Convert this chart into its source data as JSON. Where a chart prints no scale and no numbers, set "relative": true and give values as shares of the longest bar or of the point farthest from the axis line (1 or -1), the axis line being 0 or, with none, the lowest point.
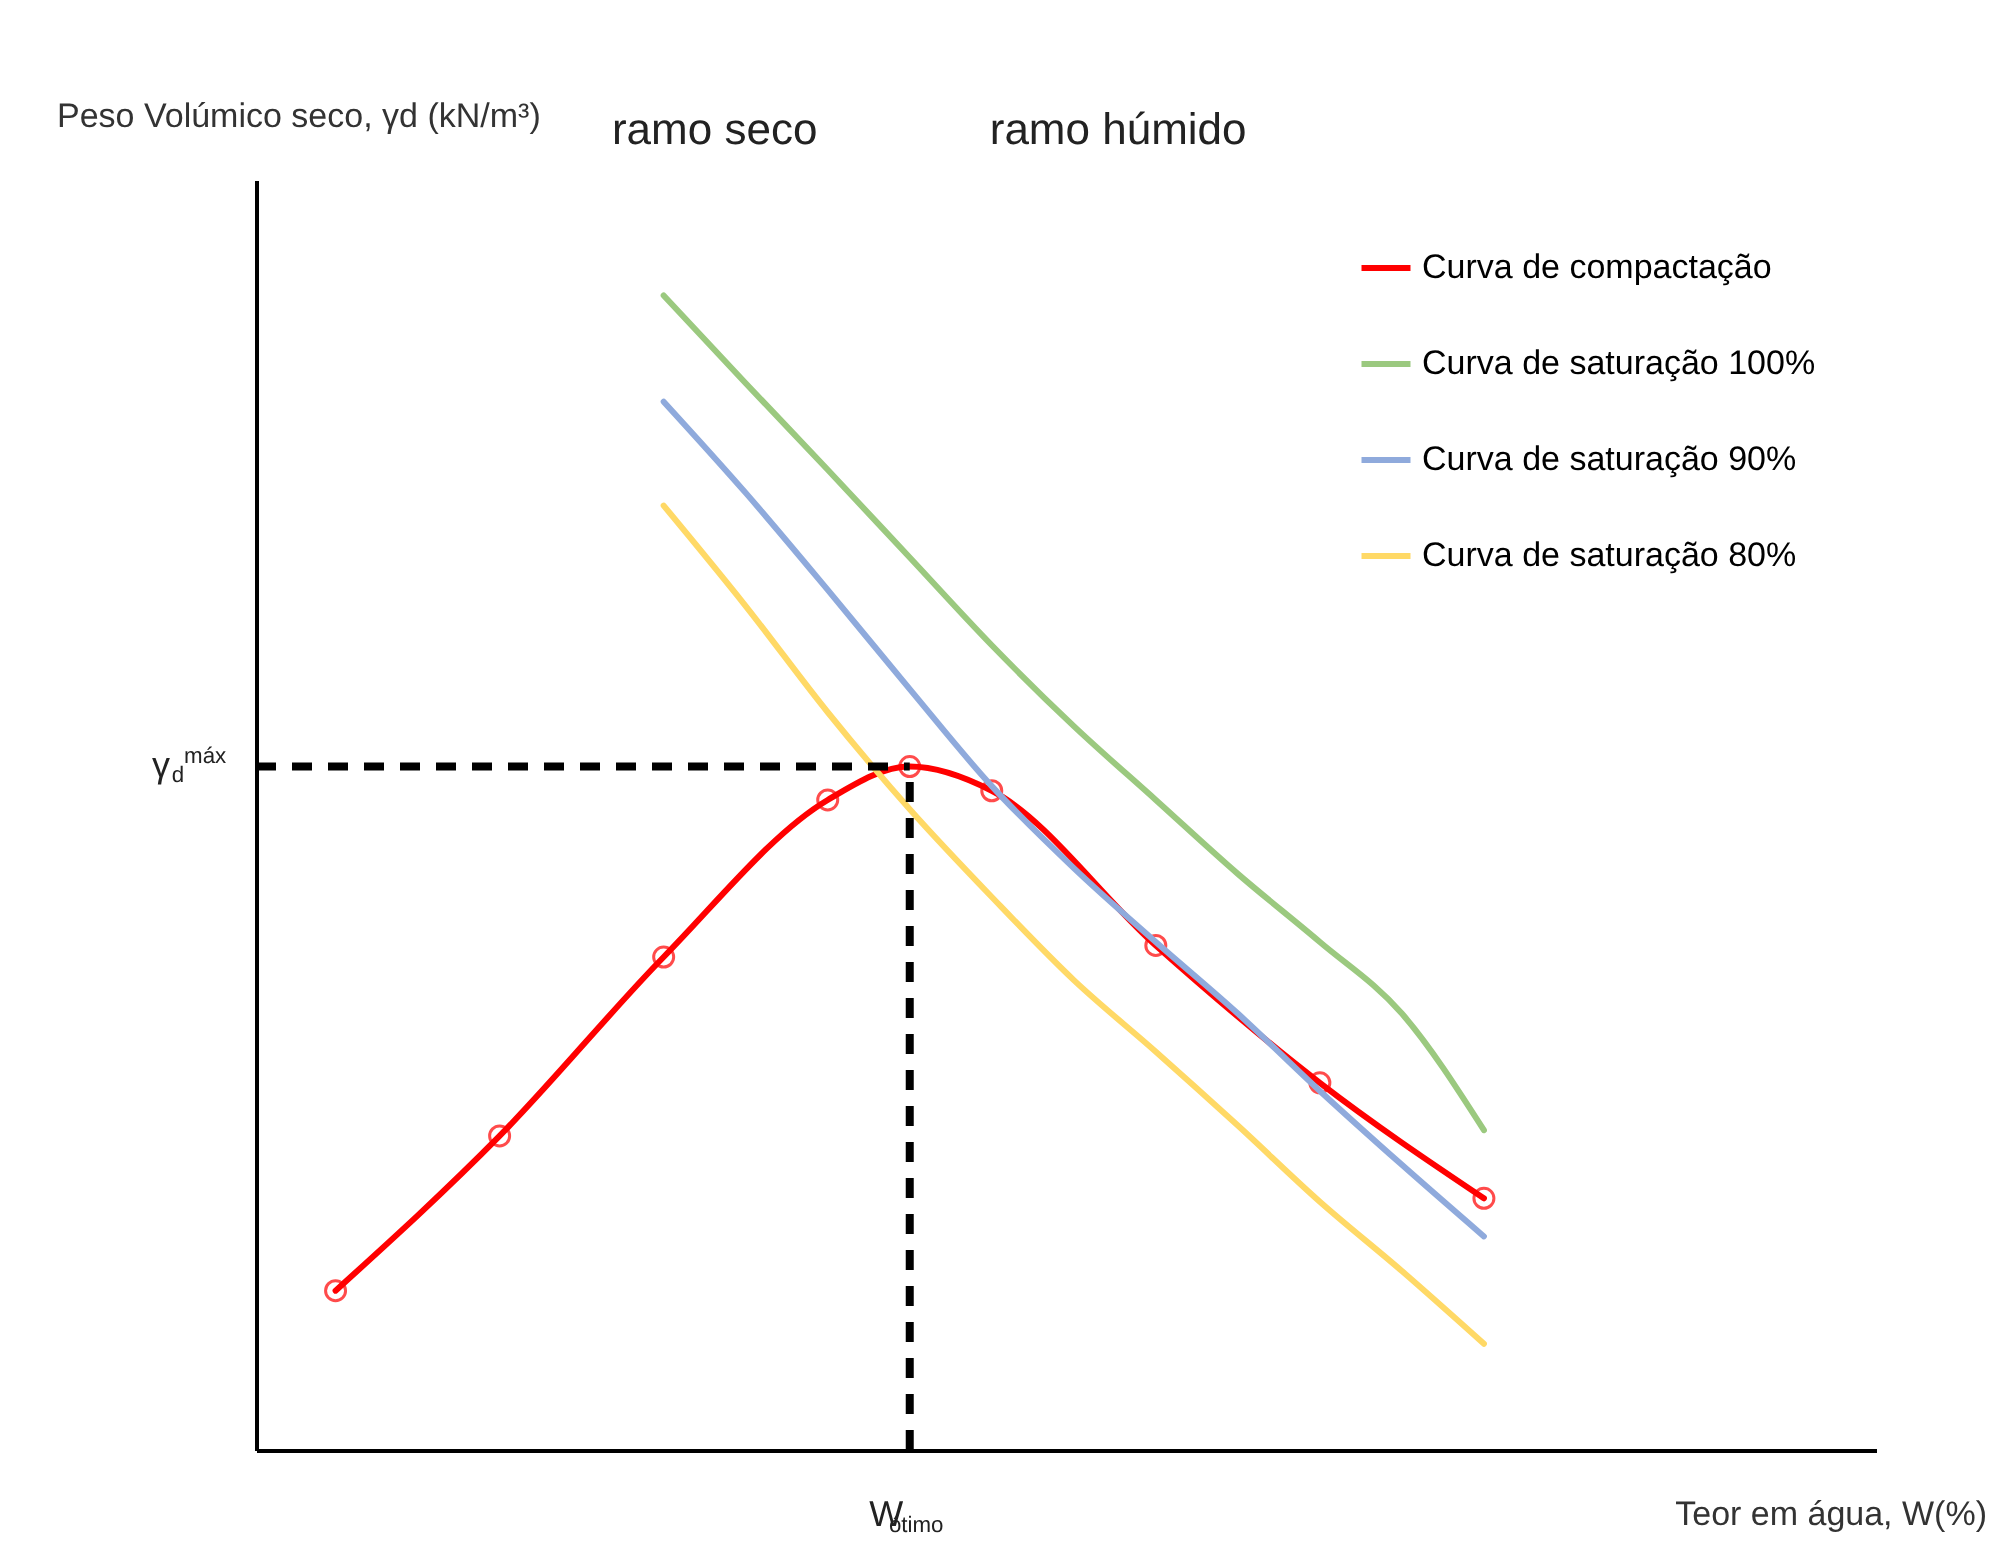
{
  "chart_data": {
    "type": "line",
    "relative": true,
    "xlabel": "Teor em água, W(%)",
    "ylabel": "Peso Volúmico seco, γd (kN/m³)",
    "categories": [
      null,
      null,
      null,
      null,
      null,
      null,
      null,
      null,
      null,
      null,
      null,
      null,
      null,
      null,
      null
    ],
    "series": [
      {
        "name": "Curva de compactação",
        "color": "#ff0000",
        "marker": "circle",
        "values": [
          0.138,
          null,
          0.272,
          null,
          0.427,
          null,
          0.563,
          0.592,
          0.571,
          null,
          0.437,
          null,
          0.318,
          null,
          0.218
        ]
      },
      {
        "name": "Curva de saturação 100%",
        "color": "#9bc97f",
        "values": [
          null,
          null,
          null,
          null,
          1.0,
          0.924,
          0.849,
          0.773,
          0.697,
          0.627,
          0.563,
          0.499,
          0.44,
          0.378,
          0.277
        ]
      },
      {
        "name": "Curva de saturação 90%",
        "color": "#8faadc",
        "values": [
          null,
          null,
          null,
          null,
          0.908,
          0.829,
          0.745,
          0.659,
          0.575,
          0.504,
          0.44,
          0.378,
          0.311,
          0.247,
          0.185
        ]
      },
      {
        "name": "Curva de saturação 80%",
        "color": "#ffd966",
        "values": [
          null,
          null,
          null,
          null,
          0.818,
          0.731,
          0.639,
          0.555,
          0.479,
          0.407,
          0.345,
          0.281,
          0.215,
          0.155,
          0.092
        ]
      }
    ],
    "ref_lines": [
      {
        "axis": "y",
        "value": 0.592,
        "label": "γ$_{d}$$^{máx}$",
        "line_style": "dashed",
        "color": "#000000"
      }
    ],
    "annotations": [
      "ramo seco",
      "ramo húmido",
      "W$_{ótimo}$"
    ],
    "legend": "top right",
    "grid": false
  }
}
